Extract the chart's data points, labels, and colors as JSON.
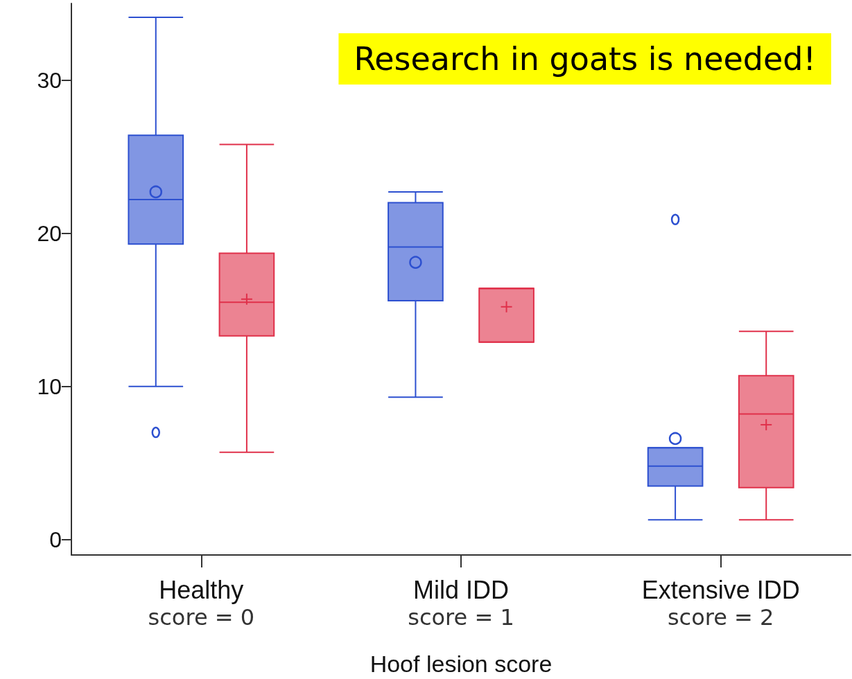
{
  "chart_data": {
    "type": "box",
    "title": "Research in goats is needed!",
    "xlabel": "Hoof lesion score",
    "categories": [
      "Healthy",
      "Mild IDD",
      "Extensive IDD"
    ],
    "annotations": [
      "score = 0",
      "score = 1",
      "score = 2"
    ],
    "ylim": [
      -1,
      35
    ],
    "yticks": [
      0,
      10,
      20,
      30
    ],
    "grid": false,
    "series": [
      {
        "color": "#2d50d0",
        "marker": "circle",
        "boxes": [
          {
            "low": 10.0,
            "q1": 19.3,
            "median": 22.2,
            "q3": 26.4,
            "high": 34.1,
            "mean": 22.7,
            "outliers": [
              7.0
            ]
          },
          {
            "low": 9.3,
            "q1": 15.6,
            "median": 19.1,
            "q3": 22.0,
            "high": 22.7,
            "mean": 18.1
          },
          {
            "low": 1.3,
            "q1": 3.5,
            "median": 4.8,
            "q3": 6.0,
            "high": 6.0,
            "mean": 6.6,
            "outliers": [
              20.9
            ]
          }
        ]
      },
      {
        "color": "#e0304a",
        "marker": "cross",
        "boxes": [
          {
            "low": 5.7,
            "q1": 13.3,
            "median": 15.5,
            "q3": 18.7,
            "high": 25.8,
            "mean": 15.7
          },
          {
            "low": 12.9,
            "q1": 12.9,
            "median": 16.4,
            "q3": 16.4,
            "high": 16.4,
            "mean": 15.2
          },
          {
            "low": 1.3,
            "q1": 3.4,
            "median": 8.2,
            "q3": 10.7,
            "high": 13.6,
            "mean": 7.5
          }
        ]
      }
    ]
  }
}
